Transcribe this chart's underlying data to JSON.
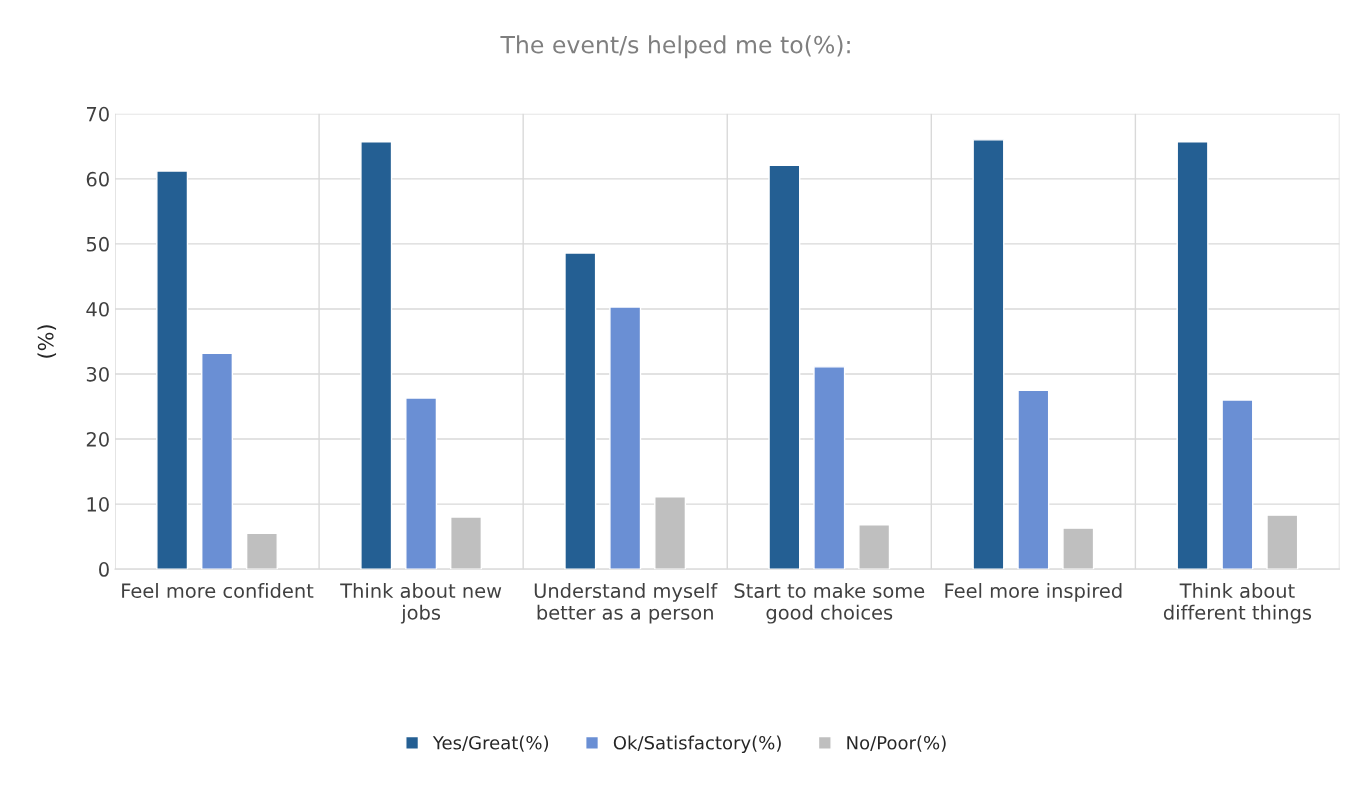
{
  "chart_data": {
    "type": "bar",
    "title": "The event/s helped me to(%):",
    "ylabel": "(%)",
    "categories": [
      "Feel more confident",
      "Think about new\njobs",
      "Understand myself\nbetter as a person",
      "Start to make some\ngood choices",
      "Feel more inspired",
      "Think about\ndifferent things"
    ],
    "series": [
      {
        "name": "Yes/Great(%)",
        "color": "#245f93",
        "values": [
          61.2,
          65.7,
          48.6,
          62.1,
          66.0,
          65.7
        ]
      },
      {
        "name": "Ok/Satisfactory(%)",
        "color": "#6a8fd4",
        "values": [
          33.2,
          26.3,
          40.3,
          31.1,
          27.5,
          26.0
        ]
      },
      {
        "name": "No/Poor(%)",
        "color": "#bfbfbf",
        "values": [
          5.5,
          8.0,
          11.1,
          6.8,
          6.3,
          8.3
        ]
      }
    ],
    "ylim": [
      0,
      70
    ],
    "yticks": [
      0,
      10,
      20,
      30,
      40,
      50,
      60,
      70
    ],
    "grid": true,
    "legend": "bottom"
  }
}
